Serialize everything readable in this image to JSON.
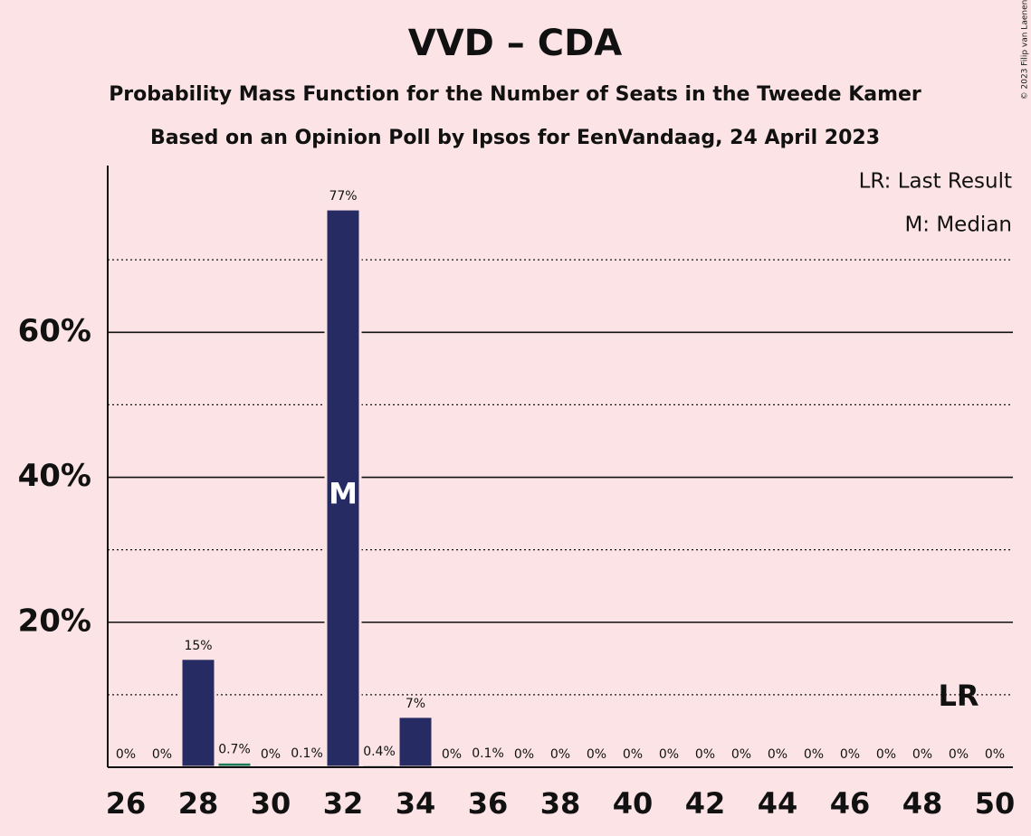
{
  "chart_data": {
    "type": "bar",
    "title": "VVD – CDA",
    "subtitle": [
      "Probability Mass Function for the Number of Seats in the Tweede Kamer",
      "Based on an Opinion Poll by Ipsos for EenVandaag, 24 April 2023"
    ],
    "copyright": "© 2023 Filip van Laenen",
    "legend_texts": [
      "LR: Last Result",
      "M: Median"
    ],
    "x": [
      26,
      27,
      28,
      29,
      30,
      31,
      32,
      33,
      34,
      35,
      36,
      37,
      38,
      39,
      40,
      41,
      42,
      43,
      44,
      45,
      46,
      47,
      48,
      49,
      50
    ],
    "values": [
      0,
      0,
      15,
      0.7,
      0,
      0.1,
      77,
      0.4,
      7,
      0,
      0.1,
      0,
      0,
      0,
      0,
      0,
      0,
      0,
      0,
      0,
      0,
      0,
      0,
      0,
      0
    ],
    "value_labels": [
      "0%",
      "0%",
      "15%",
      "0.7%",
      "0%",
      "0.1%",
      "77%",
      "0.4%",
      "7%",
      "0%",
      "0.1%",
      "0%",
      "0%",
      "0%",
      "0%",
      "0%",
      "0%",
      "0%",
      "0%",
      "0%",
      "0%",
      "0%",
      "0%",
      "0%",
      "0%"
    ],
    "colors": [
      "#262b63",
      "#262b63",
      "#262b63",
      "#1c7a5c",
      "#262b63",
      "#262b63",
      "#262b63",
      "#1c7a5c",
      "#262b63",
      "#262b63",
      "#262b63",
      "#262b63",
      "#262b63",
      "#262b63",
      "#262b63",
      "#262b63",
      "#262b63",
      "#262b63",
      "#262b63",
      "#262b63",
      "#262b63",
      "#262b63",
      "#262b63",
      "#262b63",
      "#262b63"
    ],
    "median": 32,
    "median_label": "M",
    "last_result": 49,
    "last_result_label": "LR",
    "xlim": [
      25.5,
      50.5
    ],
    "xticks": [
      26,
      28,
      30,
      32,
      34,
      36,
      38,
      40,
      42,
      44,
      46,
      48,
      50
    ],
    "ylim": [
      0,
      83
    ],
    "yticks": [
      {
        "value": 20,
        "label": "20%"
      },
      {
        "value": 40,
        "label": "40%"
      },
      {
        "value": 60,
        "label": "60%"
      }
    ],
    "minor_yticks": [
      10,
      30,
      50,
      70
    ],
    "grid": true
  }
}
